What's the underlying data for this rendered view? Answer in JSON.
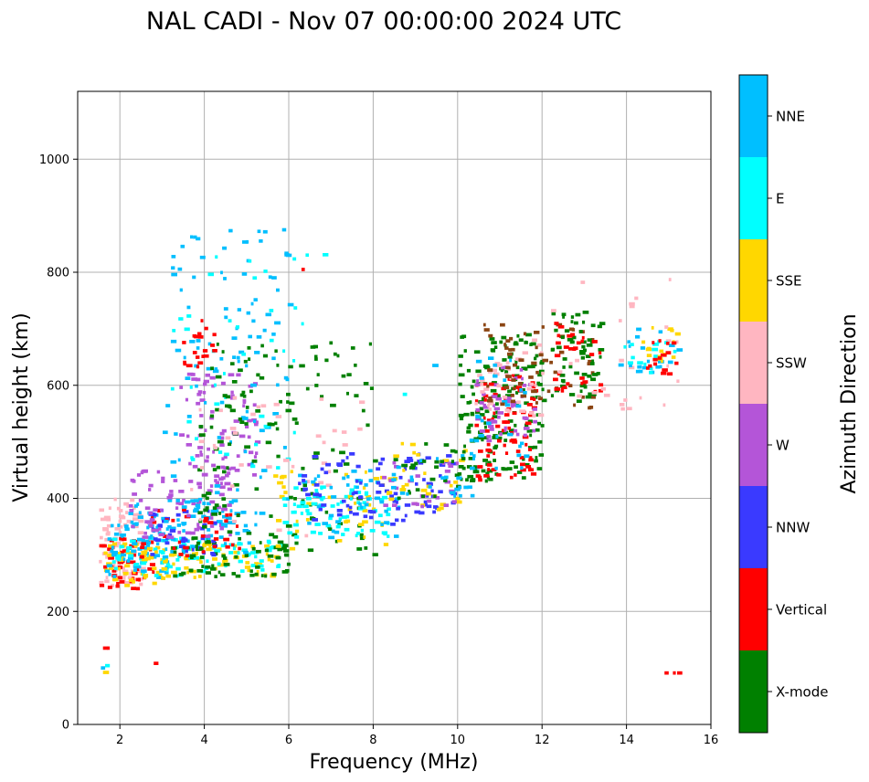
{
  "chart_data": {
    "type": "scatter",
    "title": "NAL CADI - Nov 07 00:00:00 2024 UTC",
    "xlabel": "Frequency (MHz)",
    "ylabel": "Virtual height (km)",
    "xlim": [
      1,
      16
    ],
    "ylim": [
      0,
      1120
    ],
    "xticks": [
      2,
      4,
      6,
      8,
      10,
      12,
      14,
      16
    ],
    "yticks": [
      0,
      200,
      400,
      600,
      800,
      1000
    ],
    "grid": true,
    "colorbar": {
      "label": "Azimuth Direction",
      "position": "right",
      "categories": [
        {
          "name": "X-mode",
          "color": "#008000"
        },
        {
          "name": "Vertical",
          "color": "#ff0000"
        },
        {
          "name": "NNW",
          "color": "#3a3aff"
        },
        {
          "name": "W",
          "color": "#b455d8"
        },
        {
          "name": "SSW",
          "color": "#ffb6c1"
        },
        {
          "name": "SSE",
          "color": "#ffd700"
        },
        {
          "name": "E",
          "color": "#00ffff"
        },
        {
          "name": "NNE",
          "color": "#00bfff"
        }
      ]
    },
    "extra_colors": {
      "X-mode-dark": "#8b4513"
    },
    "cell_size": {
      "freq_mhz": 0.1,
      "height_km": 6
    },
    "clusters": [
      {
        "category": "SSW",
        "f": [
          1.5,
          2.6
        ],
        "h": [
          240,
          400
        ],
        "n": 90
      },
      {
        "category": "Vertical",
        "f": [
          1.5,
          2.8
        ],
        "h": [
          240,
          340
        ],
        "n": 50
      },
      {
        "category": "SSE",
        "f": [
          1.6,
          3.0
        ],
        "h": [
          245,
          320
        ],
        "n": 40
      },
      {
        "category": "NNE",
        "f": [
          1.6,
          3.2
        ],
        "h": [
          260,
          360
        ],
        "n": 50
      },
      {
        "category": "E",
        "f": [
          1.8,
          3.4
        ],
        "h": [
          260,
          330
        ],
        "n": 35
      },
      {
        "category": "SSE",
        "f": [
          2.4,
          5.8
        ],
        "h": [
          260,
          320
        ],
        "n": 70
      },
      {
        "category": "E",
        "f": [
          3.0,
          5.8
        ],
        "h": [
          270,
          330
        ],
        "n": 60
      },
      {
        "category": "X-mode",
        "f": [
          3.2,
          6.0
        ],
        "h": [
          260,
          330
        ],
        "n": 60
      },
      {
        "category": "NNE",
        "f": [
          2.2,
          5.2
        ],
        "h": [
          300,
          400
        ],
        "n": 80
      },
      {
        "category": "NNW",
        "f": [
          2.6,
          4.4
        ],
        "h": [
          300,
          380
        ],
        "n": 40
      },
      {
        "category": "Vertical",
        "f": [
          2.4,
          4.8
        ],
        "h": [
          290,
          380
        ],
        "n": 35
      },
      {
        "category": "W",
        "f": [
          2.2,
          4.6
        ],
        "h": [
          330,
          450
        ],
        "n": 80
      },
      {
        "category": "W",
        "f": [
          3.4,
          5.2
        ],
        "h": [
          440,
          620
        ],
        "n": 80
      },
      {
        "category": "NNE",
        "f": [
          3.0,
          6.0
        ],
        "h": [
          350,
          880
        ],
        "n": 110
      },
      {
        "category": "E",
        "f": [
          3.2,
          6.4
        ],
        "h": [
          450,
          840
        ],
        "n": 40
      },
      {
        "category": "Vertical",
        "f": [
          3.4,
          4.2
        ],
        "h": [
          630,
          720
        ],
        "n": 20
      },
      {
        "category": "X-mode",
        "f": [
          3.8,
          8.0
        ],
        "h": [
          300,
          680
        ],
        "n": 150
      },
      {
        "category": "SSW",
        "f": [
          3.6,
          8.0
        ],
        "h": [
          330,
          580
        ],
        "n": 40
      },
      {
        "category": "SSE",
        "f": [
          5.6,
          8.4
        ],
        "h": [
          310,
          450
        ],
        "n": 40
      },
      {
        "category": "E",
        "f": [
          5.8,
          8.4
        ],
        "h": [
          330,
          420
        ],
        "n": 70
      },
      {
        "category": "NNE",
        "f": [
          6.2,
          8.6
        ],
        "h": [
          330,
          450
        ],
        "n": 40
      },
      {
        "category": "NNW",
        "f": [
          6.2,
          10.0
        ],
        "h": [
          350,
          480
        ],
        "n": 90
      },
      {
        "category": "SSE",
        "f": [
          8.2,
          10.2
        ],
        "h": [
          380,
          500
        ],
        "n": 30
      },
      {
        "category": "W",
        "f": [
          8.2,
          10.0
        ],
        "h": [
          380,
          470
        ],
        "n": 25
      },
      {
        "category": "X-mode",
        "f": [
          8.4,
          10.4
        ],
        "h": [
          400,
          500
        ],
        "n": 30
      },
      {
        "category": "NNE",
        "f": [
          8.4,
          10.4
        ],
        "h": [
          400,
          480
        ],
        "n": 25
      },
      {
        "category": "X-mode",
        "f": [
          10.0,
          12.0
        ],
        "h": [
          430,
          690
        ],
        "n": 170
      },
      {
        "category": "Vertical",
        "f": [
          10.4,
          11.8
        ],
        "h": [
          430,
          620
        ],
        "n": 80
      },
      {
        "category": "W",
        "f": [
          10.4,
          11.8
        ],
        "h": [
          500,
          640
        ],
        "n": 50
      },
      {
        "category": "SSW",
        "f": [
          10.4,
          12.0
        ],
        "h": [
          540,
          680
        ],
        "n": 40
      },
      {
        "category": "NNE",
        "f": [
          10.2,
          11.6
        ],
        "h": [
          450,
          660
        ],
        "n": 30
      },
      {
        "category": "X-mode-dark",
        "f": [
          10.6,
          13.2
        ],
        "h": [
          560,
          710
        ],
        "n": 60
      },
      {
        "category": "X-mode",
        "f": [
          12.2,
          13.4
        ],
        "h": [
          570,
          730
        ],
        "n": 60
      },
      {
        "category": "Vertical",
        "f": [
          12.2,
          13.4
        ],
        "h": [
          580,
          710
        ],
        "n": 30
      },
      {
        "category": "SSW",
        "f": [
          12.2,
          15.4
        ],
        "h": [
          540,
          790
        ],
        "n": 25
      },
      {
        "category": "NNE",
        "f": [
          13.8,
          15.2
        ],
        "h": [
          620,
          700
        ],
        "n": 20
      },
      {
        "category": "E",
        "f": [
          13.8,
          15.2
        ],
        "h": [
          620,
          680
        ],
        "n": 15
      },
      {
        "category": "SSE",
        "f": [
          14.2,
          15.2
        ],
        "h": [
          630,
          710
        ],
        "n": 15
      },
      {
        "category": "Vertical",
        "f": [
          14.4,
          15.2
        ],
        "h": [
          620,
          680
        ],
        "n": 15
      }
    ],
    "points": [
      {
        "f": 1.6,
        "h": 135,
        "category": "Vertical"
      },
      {
        "f": 1.7,
        "h": 135,
        "category": "Vertical"
      },
      {
        "f": 1.55,
        "h": 100,
        "category": "NNE"
      },
      {
        "f": 1.6,
        "h": 92,
        "category": "SSE"
      },
      {
        "f": 1.65,
        "h": 104,
        "category": "E"
      },
      {
        "f": 2.8,
        "h": 108,
        "category": "Vertical"
      },
      {
        "f": 14.9,
        "h": 91,
        "category": "Vertical"
      },
      {
        "f": 15.1,
        "h": 91,
        "category": "Vertical"
      },
      {
        "f": 15.2,
        "h": 91,
        "category": "Vertical"
      },
      {
        "f": 6.3,
        "h": 805,
        "category": "Vertical"
      },
      {
        "f": 6.8,
        "h": 831,
        "category": "E"
      },
      {
        "f": 7.9,
        "h": 673,
        "category": "X-mode"
      },
      {
        "f": 9.4,
        "h": 635,
        "category": "NNE"
      },
      {
        "f": 8.7,
        "h": 584,
        "category": "E"
      },
      {
        "f": 15.0,
        "h": 787,
        "category": "SSW"
      },
      {
        "f": 14.9,
        "h": 703,
        "category": "SSW"
      }
    ]
  }
}
